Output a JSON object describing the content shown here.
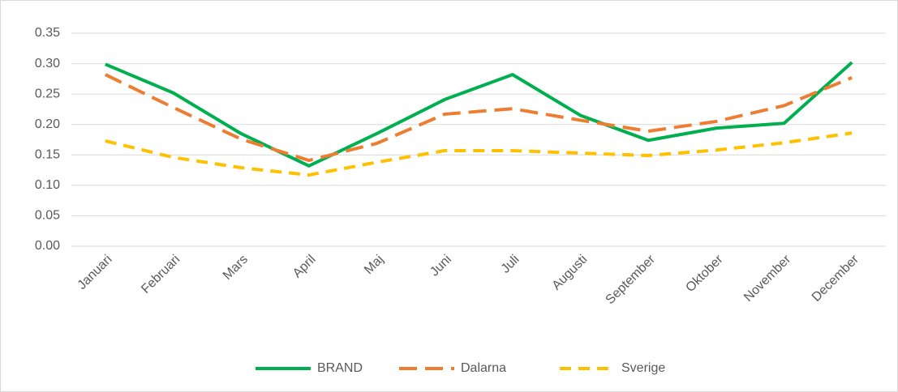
{
  "chart_data": {
    "type": "line",
    "categories": [
      "Januari",
      "Februari",
      "Mars",
      "April",
      "Maj",
      "Juni",
      "Juli",
      "Augusti",
      "September",
      "Oktober",
      "November",
      "December"
    ],
    "series": [
      {
        "name": "BRAND",
        "color": "#00b050",
        "style": "solid",
        "values": [
          0.299,
          0.252,
          0.185,
          0.132,
          0.185,
          0.241,
          0.282,
          0.215,
          0.174,
          0.194,
          0.202,
          0.302
        ]
      },
      {
        "name": "Dalarna",
        "color": "#ed7d31",
        "style": "long-dash",
        "values": [
          0.282,
          0.228,
          0.176,
          0.141,
          0.169,
          0.217,
          0.226,
          0.207,
          0.189,
          0.205,
          0.231,
          0.277
        ]
      },
      {
        "name": "Sverige",
        "color": "#ffc000",
        "style": "dash",
        "values": [
          0.173,
          0.146,
          0.129,
          0.117,
          0.138,
          0.157,
          0.157,
          0.153,
          0.149,
          0.158,
          0.17,
          0.186
        ]
      }
    ],
    "ylim": [
      0,
      0.35
    ],
    "yticks": [
      {
        "value": 0,
        "label": "0.00"
      },
      {
        "value": 0.05,
        "label": "0.05"
      },
      {
        "value": 0.1,
        "label": "0.10"
      },
      {
        "value": 0.15,
        "label": "0.15"
      },
      {
        "value": 0.2,
        "label": "0.20"
      },
      {
        "value": 0.25,
        "label": "0.25"
      },
      {
        "value": 0.3,
        "label": "0.30"
      },
      {
        "value": 0.35,
        "label": "0.35"
      }
    ],
    "grid": true,
    "legend": "bottom"
  }
}
